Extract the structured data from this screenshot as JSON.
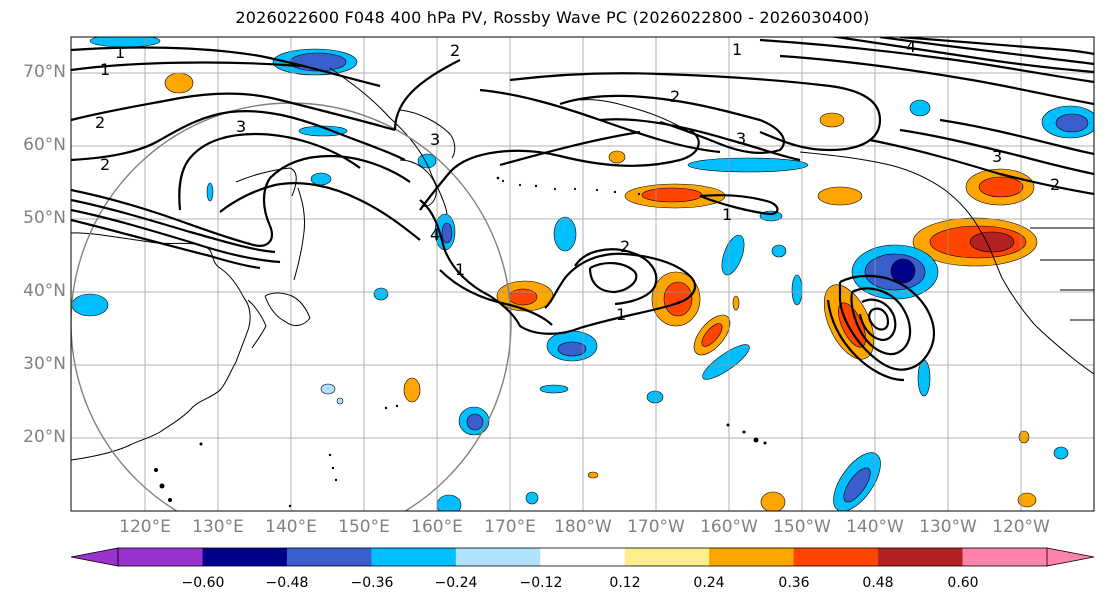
{
  "title": "2026022600 F048 400 hPa PV, Rossby Wave PC (2026022800 - 2026030400)",
  "lat_labels": [
    "70°N",
    "60°N",
    "50°N",
    "40°N",
    "30°N",
    "20°N"
  ],
  "lon_labels": [
    "120°E",
    "130°E",
    "140°E",
    "150°E",
    "160°E",
    "170°E",
    "180°W",
    "170°W",
    "160°W",
    "150°W",
    "140°W",
    "130°W",
    "120°W"
  ],
  "colorbar": {
    "ticks": [
      "−0.60",
      "−0.48",
      "−0.36",
      "−0.24",
      "−0.12",
      "0.12",
      "0.24",
      "0.36",
      "0.48",
      "0.60"
    ],
    "colors": [
      "#9a32cd",
      "#00008b",
      "#3a5fcd",
      "#00bfff",
      "#b0e2ff",
      "#ffffff",
      "#ffec8b",
      "#ffa500",
      "#ff4500",
      "#b22222",
      "#ff82ab"
    ]
  },
  "contour_labels": [
    "1",
    "1",
    "2",
    "2",
    "3",
    "3",
    "4",
    "2",
    "1",
    "2",
    "1",
    "3",
    "3",
    "4",
    "2",
    "2",
    "1",
    "1"
  ]
}
